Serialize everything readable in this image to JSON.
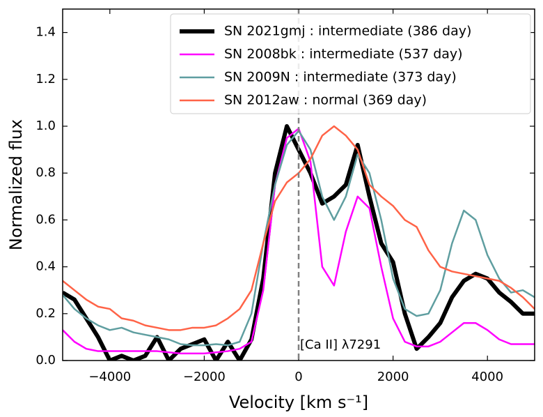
{
  "chart_data": {
    "type": "line",
    "xlabel": "Velocity [km s⁻¹]",
    "ylabel": "Normalized flux",
    "annotation": "[Ca II] λ7291",
    "vline": 0,
    "legend": "upper right",
    "xlim": [
      -5000,
      5000
    ],
    "ylim": [
      0,
      1.5
    ],
    "xticks": [
      {
        "value": -4000,
        "label": "−4000"
      },
      {
        "value": -2000,
        "label": "−2000"
      },
      0,
      2000,
      4000
    ],
    "yticks": [
      {
        "value": 0,
        "label": "0.0"
      },
      0.2,
      0.4,
      0.6,
      0.8,
      {
        "value": 1,
        "label": "1.0"
      },
      1.2,
      1.4
    ],
    "x": [
      -5000,
      -4750,
      -4500,
      -4250,
      -4000,
      -3750,
      -3500,
      -3250,
      -3000,
      -2750,
      -2500,
      -2250,
      -2000,
      -1750,
      -1500,
      -1250,
      -1000,
      -750,
      -500,
      -250,
      0,
      250,
      500,
      750,
      1000,
      1250,
      1500,
      1750,
      2000,
      2250,
      2500,
      2750,
      3000,
      3250,
      3500,
      3750,
      4000,
      4250,
      4500,
      4750,
      5000
    ],
    "series": [
      {
        "name": "SN 2021gmj : intermediate (386 day)",
        "color": "#000000",
        "width": 6,
        "values": [
          0.29,
          0.26,
          0.18,
          0.1,
          0.0,
          0.02,
          0.0,
          0.02,
          0.1,
          0.0,
          0.05,
          0.07,
          0.09,
          0.0,
          0.08,
          0.0,
          0.09,
          0.35,
          0.8,
          1.0,
          0.9,
          0.8,
          0.67,
          0.7,
          0.75,
          0.92,
          0.7,
          0.5,
          0.42,
          0.2,
          0.05,
          0.1,
          0.16,
          0.27,
          0.34,
          0.37,
          0.35,
          0.29,
          0.25,
          0.2,
          0.2
        ]
      },
      {
        "name": "SN 2008bk : intermediate (537 day)",
        "color": "#ff00ff",
        "width": 2.5,
        "values": [
          0.13,
          0.08,
          0.05,
          0.04,
          0.04,
          0.04,
          0.04,
          0.04,
          0.04,
          0.035,
          0.03,
          0.03,
          0.03,
          0.035,
          0.04,
          0.05,
          0.08,
          0.3,
          0.75,
          0.95,
          0.99,
          0.85,
          0.4,
          0.32,
          0.55,
          0.7,
          0.65,
          0.4,
          0.18,
          0.08,
          0.06,
          0.06,
          0.08,
          0.12,
          0.16,
          0.16,
          0.13,
          0.09,
          0.07,
          0.07,
          0.07
        ]
      },
      {
        "name": "SN 2009N : intermediate (373 day)",
        "color": "#5f9ea0",
        "width": 2.5,
        "values": [
          0.28,
          0.22,
          0.18,
          0.15,
          0.13,
          0.14,
          0.12,
          0.11,
          0.1,
          0.09,
          0.07,
          0.065,
          0.065,
          0.07,
          0.065,
          0.08,
          0.2,
          0.5,
          0.75,
          0.92,
          0.98,
          0.9,
          0.7,
          0.6,
          0.7,
          0.88,
          0.8,
          0.6,
          0.35,
          0.22,
          0.19,
          0.2,
          0.3,
          0.5,
          0.64,
          0.6,
          0.45,
          0.35,
          0.29,
          0.3,
          0.27
        ]
      },
      {
        "name": "SN 2012aw : normal (369 day)",
        "color": "#ff6347",
        "width": 2.5,
        "values": [
          0.34,
          0.3,
          0.26,
          0.23,
          0.22,
          0.18,
          0.17,
          0.15,
          0.14,
          0.13,
          0.13,
          0.14,
          0.14,
          0.15,
          0.18,
          0.22,
          0.3,
          0.5,
          0.68,
          0.76,
          0.8,
          0.86,
          0.96,
          1.0,
          0.96,
          0.9,
          0.75,
          0.7,
          0.66,
          0.6,
          0.57,
          0.47,
          0.4,
          0.38,
          0.37,
          0.36,
          0.35,
          0.34,
          0.31,
          0.27,
          0.22
        ]
      }
    ]
  }
}
